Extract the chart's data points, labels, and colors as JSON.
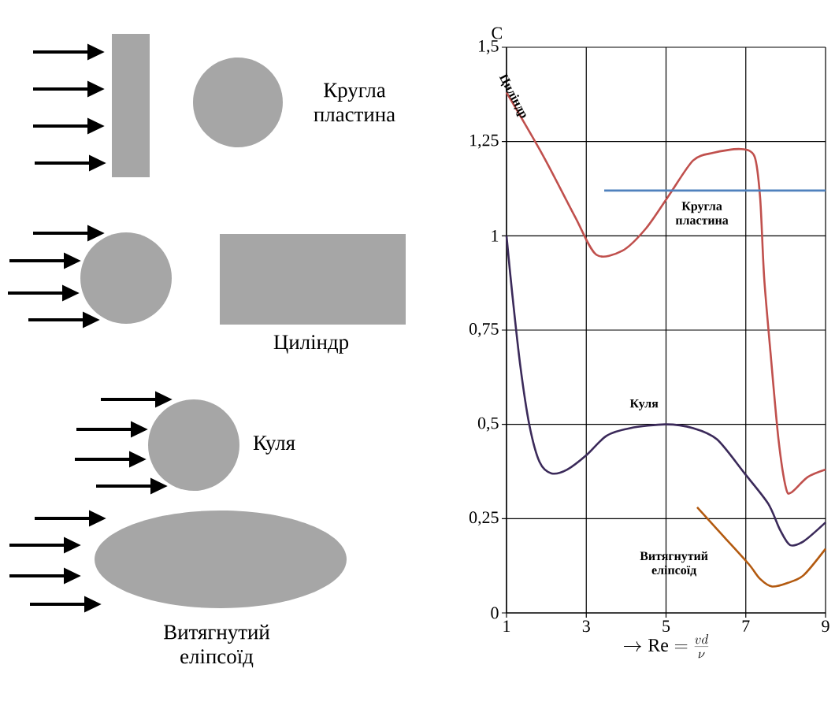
{
  "chart_data": {
    "type": "line",
    "ylabel": "C",
    "xlabel": "\\rightarrow \\mathrm{Re}=\\frac{vd}{\\nu}",
    "xlim": [
      1,
      9
    ],
    "xticks": [
      1,
      3,
      5,
      7,
      9
    ],
    "ylim": [
      0,
      1.5
    ],
    "yticks": [
      0,
      {
        "value": 0.25,
        "label": "0,25"
      },
      {
        "value": 0.5,
        "label": "0,5"
      },
      {
        "value": 0.75,
        "label": "0,75"
      },
      1,
      {
        "value": 1.25,
        "label": "1,25"
      },
      {
        "value": 1.5,
        "label": "1,5"
      }
    ],
    "grid": true,
    "marker": "none",
    "line_style": "solid",
    "series": [
      {
        "name": "Циліндр",
        "color": "#c0504d",
        "x": [
          1,
          1.93,
          2.72,
          3.25,
          3.9,
          4.5,
          5.09,
          5.68,
          6.18,
          6.87,
          7.22,
          7.36,
          7.46,
          7.62,
          7.82,
          8.01,
          8.15,
          8.55,
          9
        ],
        "values": [
          1.38,
          1.21,
          1.05,
          0.95,
          0.96,
          1.02,
          1.11,
          1.2,
          1.22,
          1.23,
          1.21,
          1.1,
          0.89,
          0.69,
          0.46,
          0.33,
          0.32,
          0.36,
          0.38
        ]
      },
      {
        "name": "Кругла пластина",
        "color": "#4f81bd",
        "x": [
          3.45,
          9
        ],
        "values": [
          1.12,
          1.12
        ]
      },
      {
        "name": "Куля",
        "color": "#3b2a5a",
        "x": [
          1,
          1.14,
          1.34,
          1.57,
          1.83,
          2.13,
          2.52,
          3.02,
          3.51,
          4.1,
          4.99,
          5.68,
          6.28,
          6.97,
          7.56,
          7.86,
          8.11,
          8.45,
          9
        ],
        "values": [
          1.0,
          0.85,
          0.66,
          0.5,
          0.4,
          0.37,
          0.38,
          0.42,
          0.47,
          0.49,
          0.5,
          0.49,
          0.46,
          0.37,
          0.29,
          0.22,
          0.18,
          0.19,
          0.24
        ]
      },
      {
        "name": "Витягнутий еліпсоїд",
        "color": "#b35a10",
        "x": [
          5.78,
          6.47,
          7.07,
          7.36,
          7.66,
          8.06,
          8.45,
          9
        ],
        "values": [
          0.28,
          0.2,
          0.13,
          0.09,
          0.07,
          0.08,
          0.1,
          0.17
        ]
      }
    ],
    "annotations": [
      "Кругла пластина",
      "Циліндр",
      "Куля",
      "Витягнутий еліпсоїд"
    ]
  }
}
